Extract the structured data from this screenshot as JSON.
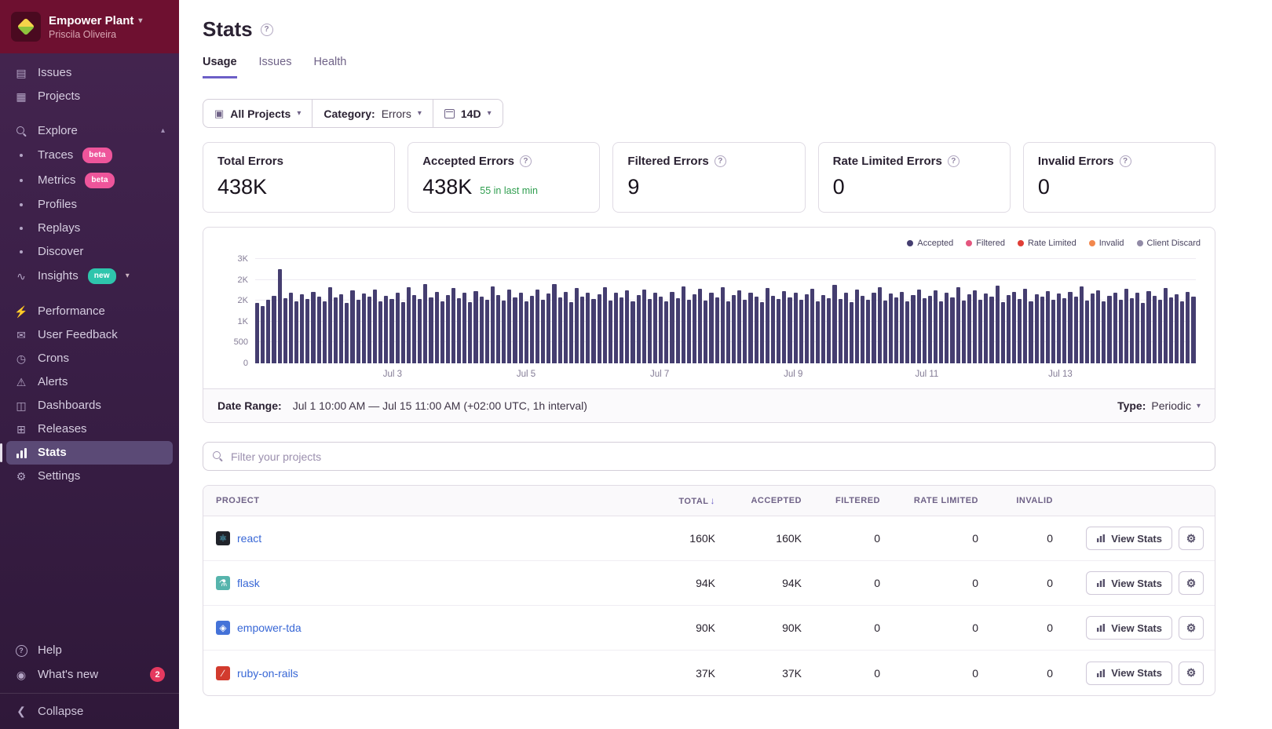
{
  "sidebar": {
    "org_name": "Empower Plant",
    "org_user": "Priscila Oliveira",
    "primary": [
      {
        "label": "Issues",
        "icon": "▤"
      },
      {
        "label": "Projects",
        "icon": "▦"
      }
    ],
    "explore": {
      "label": "Explore",
      "items": [
        {
          "label": "Traces",
          "badge": "beta"
        },
        {
          "label": "Metrics",
          "badge": "beta"
        },
        {
          "label": "Profiles",
          "badge": ""
        },
        {
          "label": "Replays",
          "badge": ""
        },
        {
          "label": "Discover",
          "badge": ""
        }
      ]
    },
    "insights": {
      "label": "Insights",
      "icon": "∿",
      "badge": "new"
    },
    "secondary": [
      {
        "label": "Performance",
        "icon": "⚡"
      },
      {
        "label": "User Feedback",
        "icon": "✉"
      },
      {
        "label": "Crons",
        "icon": "◷"
      },
      {
        "label": "Alerts",
        "icon": "⚠"
      },
      {
        "label": "Dashboards",
        "icon": "◫"
      },
      {
        "label": "Releases",
        "icon": "⊞"
      },
      {
        "label": "Stats",
        "icon": ""
      },
      {
        "label": "Settings",
        "icon": "⚙"
      }
    ],
    "footer": {
      "help": "Help",
      "whats_new": "What's new",
      "whats_new_count": "2",
      "collapse": "Collapse"
    }
  },
  "header": {
    "title": "Stats"
  },
  "tabs": [
    {
      "label": "Usage"
    },
    {
      "label": "Issues"
    },
    {
      "label": "Health"
    }
  ],
  "filters": {
    "projects": "All Projects",
    "category_label": "Category:",
    "category_value": "Errors",
    "period": "14D"
  },
  "cards": [
    {
      "title": "Total Errors",
      "value": "438K",
      "sub": ""
    },
    {
      "title": "Accepted Errors",
      "value": "438K",
      "sub": "55 in last min"
    },
    {
      "title": "Filtered Errors",
      "value": "9",
      "sub": ""
    },
    {
      "title": "Rate Limited Errors",
      "value": "0",
      "sub": ""
    },
    {
      "title": "Invalid Errors",
      "value": "0",
      "sub": ""
    }
  ],
  "chart_data": {
    "type": "bar",
    "title": "",
    "series_label": "Accepted",
    "interval": "1h",
    "x_start": "Jul 1 10:00 AM",
    "x_end": "Jul 15 11:00 AM",
    "x_tick_labels": [
      "Jul 3",
      "Jul 5",
      "Jul 7",
      "Jul 9",
      "Jul 11",
      "Jul 13"
    ],
    "x_tick_positions_pct": [
      14.6,
      28.8,
      43.0,
      57.2,
      71.4,
      85.6
    ],
    "y_max": 2500,
    "y_ticks": [
      {
        "value": 0,
        "label": "0"
      },
      {
        "value": 500,
        "label": "500"
      },
      {
        "value": 1000,
        "label": "1K"
      },
      {
        "value": 1500,
        "label": "2K"
      },
      {
        "value": 2000,
        "label": "2K"
      },
      {
        "value": 2500,
        "label": "3K"
      }
    ],
    "values": [
      1450,
      1380,
      1520,
      1610,
      2250,
      1560,
      1700,
      1480,
      1650,
      1540,
      1720,
      1600,
      1490,
      1830,
      1570,
      1660,
      1450,
      1750,
      1520,
      1680,
      1590,
      1770,
      1480,
      1620,
      1550,
      1700,
      1460,
      1820,
      1630,
      1540,
      1900,
      1580,
      1710,
      1490,
      1640,
      1810,
      1560,
      1690,
      1470,
      1730,
      1600,
      1520,
      1850,
      1640,
      1500,
      1760,
      1580,
      1700,
      1480,
      1620,
      1760,
      1530,
      1680,
      1900,
      1570,
      1720,
      1460,
      1810,
      1590,
      1700,
      1540,
      1650,
      1830,
      1510,
      1690,
      1580,
      1740,
      1480,
      1630,
      1770,
      1550,
      1700,
      1600,
      1480,
      1720,
      1560,
      1840,
      1520,
      1660,
      1780,
      1500,
      1690,
      1570,
      1820,
      1480,
      1640,
      1750,
      1530,
      1700,
      1590,
      1460,
      1810,
      1620,
      1540,
      1730,
      1580,
      1700,
      1520,
      1650,
      1790,
      1480,
      1630,
      1560,
      1880,
      1540,
      1700,
      1470,
      1760,
      1610,
      1530,
      1690,
      1820,
      1500,
      1670,
      1580,
      1720,
      1490,
      1640,
      1770,
      1560,
      1620,
      1750,
      1480,
      1690,
      1570,
      1830,
      1510,
      1660,
      1740,
      1520,
      1680,
      1590,
      1860,
      1470,
      1630,
      1710,
      1550,
      1790,
      1490,
      1650,
      1600,
      1730,
      1520,
      1680,
      1560,
      1720,
      1590,
      1840,
      1500,
      1670,
      1750,
      1480,
      1620,
      1700,
      1530,
      1780,
      1560,
      1690,
      1450,
      1730,
      1610,
      1520,
      1800,
      1570,
      1660,
      1490,
      1710,
      1600
    ],
    "legend": [
      {
        "label": "Accepted",
        "color": "#453e70"
      },
      {
        "label": "Filtered",
        "color": "#e4567e"
      },
      {
        "label": "Rate Limited",
        "color": "#e03e36"
      },
      {
        "label": "Invalid",
        "color": "#f2874d"
      },
      {
        "label": "Client Discard",
        "color": "#918aa6"
      }
    ]
  },
  "date_range": {
    "label": "Date Range:",
    "value": "Jul 1 10:00 AM — Jul 15 11:00 AM (+02:00 UTC, 1h interval)",
    "type_label": "Type:",
    "type_value": "Periodic"
  },
  "search": {
    "placeholder": "Filter your projects"
  },
  "table": {
    "headers": {
      "project": "Project",
      "total": "Total",
      "accepted": "Accepted",
      "filtered": "Filtered",
      "rate_limited": "Rate Limited",
      "invalid": "Invalid"
    },
    "sort_arrow": "↓",
    "view_stats_label": "View Stats",
    "rows": [
      {
        "project": "react",
        "icon_name": "react-icon",
        "icon_glyph": "⚛",
        "icon_bg": "#20232a",
        "icon_color": "#61dafb",
        "total": "160K",
        "accepted": "160K",
        "filtered": "0",
        "rate_limited": "0",
        "invalid": "0"
      },
      {
        "project": "flask",
        "icon_name": "flask-icon",
        "icon_glyph": "⚗",
        "icon_bg": "#56b4ac",
        "icon_color": "#ffffff",
        "total": "94K",
        "accepted": "94K",
        "filtered": "0",
        "rate_limited": "0",
        "invalid": "0"
      },
      {
        "project": "empower-tda",
        "icon_name": "empower-tda-icon",
        "icon_glyph": "◈",
        "icon_bg": "#4472d8",
        "icon_color": "#ffffff",
        "total": "90K",
        "accepted": "90K",
        "filtered": "0",
        "rate_limited": "0",
        "invalid": "0"
      },
      {
        "project": "ruby-on-rails",
        "icon_name": "rails-icon",
        "icon_glyph": "∕",
        "icon_bg": "#d23b2e",
        "icon_color": "#ffffff",
        "total": "37K",
        "accepted": "37K",
        "filtered": "0",
        "rate_limited": "0",
        "invalid": "0"
      }
    ]
  }
}
